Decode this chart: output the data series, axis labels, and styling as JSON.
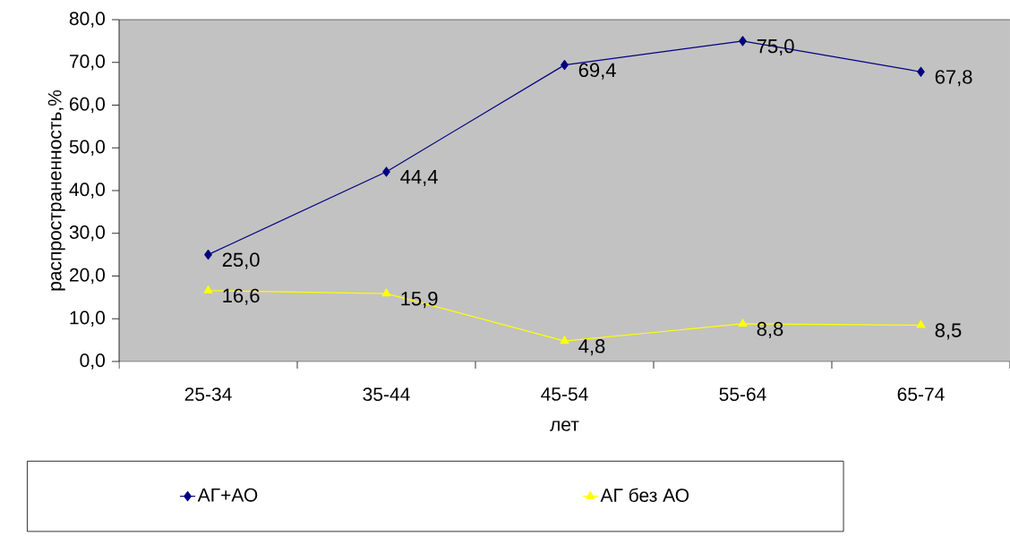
{
  "chart_data": {
    "type": "line",
    "xlabel": "лет",
    "ylabel": "распространенность,%",
    "categories": [
      "25-34",
      "35-44",
      "45-54",
      "55-64",
      "65-74"
    ],
    "ylim": [
      0,
      80
    ],
    "yticks": [
      {
        "value": 0,
        "label": "0,0"
      },
      {
        "value": 10,
        "label": "10,0"
      },
      {
        "value": 20,
        "label": "20,0"
      },
      {
        "value": 30,
        "label": "30,0"
      },
      {
        "value": 40,
        "label": "40,0"
      },
      {
        "value": 50,
        "label": "50,0"
      },
      {
        "value": 60,
        "label": "60,0"
      },
      {
        "value": 70,
        "label": "70,0"
      },
      {
        "value": 80,
        "label": "80,0"
      }
    ],
    "legend": "bottom",
    "series": [
      {
        "name": "АГ+АО",
        "color": "#000080",
        "marker": "diamond",
        "values": [
          25.0,
          44.4,
          69.4,
          75.0,
          67.8
        ],
        "value_labels": [
          "25,0",
          "44,4",
          "69,4",
          "75,0",
          "67,8"
        ]
      },
      {
        "name": "АГ без АО",
        "color": "#ffff00",
        "marker": "triangle",
        "values": [
          16.6,
          15.9,
          4.8,
          8.8,
          8.5
        ],
        "value_labels": [
          "16,6",
          "15,9",
          "4,8",
          "8,8",
          "8,5"
        ]
      }
    ]
  }
}
